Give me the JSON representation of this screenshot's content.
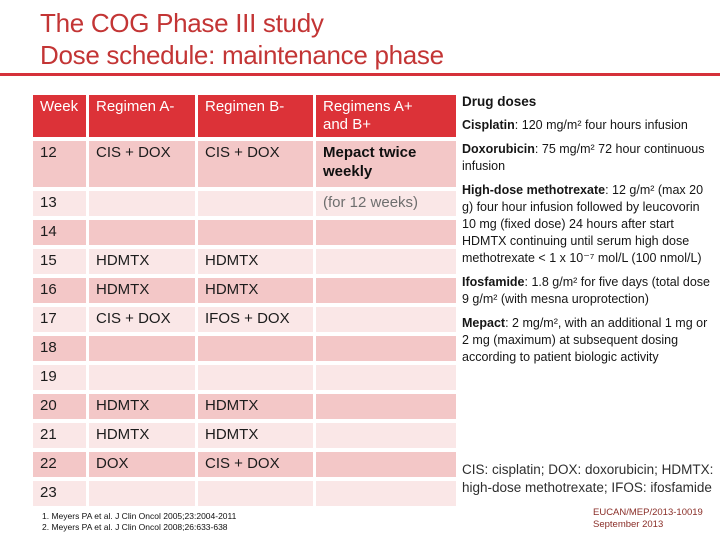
{
  "title": {
    "line1": "The COG Phase III study",
    "line2": "Dose schedule: maintenance phase"
  },
  "colors": {
    "accent_red": "#dc3238",
    "title_red": "#c33535",
    "row_dark": "#f3c7c7",
    "row_light": "#fae7e7",
    "footer_maroon": "#8a2e28"
  },
  "table": {
    "columns": [
      "Week",
      "Regimen A-",
      "Regimen B-",
      "Regimens A+\nand B+"
    ],
    "rows": [
      {
        "week": "12",
        "a": "CIS + DOX",
        "b": "CIS + DOX",
        "ab": "Mepact  twice weekly"
      },
      {
        "week": "13",
        "a": "",
        "b": "",
        "ab": "(for 12 weeks)"
      },
      {
        "week": "14",
        "a": "",
        "b": "",
        "ab": ""
      },
      {
        "week": "15",
        "a": "HDMTX",
        "b": "HDMTX",
        "ab": ""
      },
      {
        "week": "16",
        "a": "HDMTX",
        "b": "HDMTX",
        "ab": ""
      },
      {
        "week": "17",
        "a": "CIS + DOX",
        "b": "IFOS + DOX",
        "ab": ""
      },
      {
        "week": "18",
        "a": "",
        "b": "",
        "ab": ""
      },
      {
        "week": "19",
        "a": "",
        "b": "",
        "ab": ""
      },
      {
        "week": "20",
        "a": "HDMTX",
        "b": "HDMTX",
        "ab": ""
      },
      {
        "week": "21",
        "a": "HDMTX",
        "b": "HDMTX",
        "ab": ""
      },
      {
        "week": "22",
        "a": "DOX",
        "b": "CIS + DOX",
        "ab": ""
      },
      {
        "week": "23",
        "a": "",
        "b": "",
        "ab": ""
      }
    ]
  },
  "sidebar": {
    "heading": "Drug doses",
    "items": [
      {
        "term": "Cisplatin",
        "desc": ": 120 mg/m² four hours infusion"
      },
      {
        "term": "Doxorubicin",
        "desc": ": 75 mg/m² 72 hour continuous infusion"
      },
      {
        "term": "High-dose methotrexate",
        "desc": ": 12 g/m² (max 20 g) four hour infusion followed by leucovorin 10 mg (fixed dose) 24 hours after start HDMTX continuing until serum high dose methotrexate < 1 x 10⁻⁷ mol/L (100 nmol/L)"
      },
      {
        "term": "Ifosfamide",
        "desc": ": 1.8 g/m² for five days (total dose 9 g/m² (with mesna uroprotection)"
      },
      {
        "term": "Mepact",
        "desc": ": 2 mg/m², with an additional 1 mg or 2 mg (maximum) at subsequent dosing according to patient biologic activity"
      }
    ],
    "abbreviations": "CIS: cisplatin; DOX: doxorubicin; HDMTX: high-dose methotrexate; IFOS: ifosfamide"
  },
  "footer": {
    "reference1": "1. Meyers PA et al. J Clin Oncol 2005;23:2004-2011",
    "reference2": "2. Meyers PA et al. J Clin Oncol 2008;26:633-638",
    "code": "EUCAN/MEP/2013-10019",
    "date": "September 2013"
  }
}
